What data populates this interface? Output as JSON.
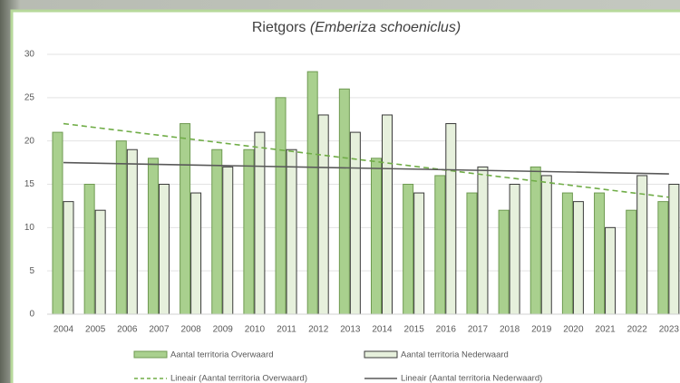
{
  "chart_data": {
    "type": "bar",
    "title": "Rietgors",
    "title_species": "(Emberiza schoeniclus)",
    "categories": [
      "2004",
      "2005",
      "2006",
      "2007",
      "2008",
      "2009",
      "2010",
      "2011",
      "2012",
      "2013",
      "2014",
      "2015",
      "2016",
      "2017",
      "2018",
      "2019",
      "2020",
      "2021",
      "2022",
      "2023"
    ],
    "series": [
      {
        "name": "Aantal territoria Overwaard",
        "color": "#a9d08e",
        "edge": "#6f9a52",
        "values": [
          21,
          15,
          20,
          18,
          22,
          19,
          19,
          25,
          28,
          26,
          18,
          15,
          16,
          14,
          12,
          17,
          14,
          14,
          12,
          13
        ]
      },
      {
        "name": "Aantal territoria Nederwaard",
        "color": "#e6f0dc",
        "edge": "#3a3a3a",
        "values": [
          13,
          12,
          19,
          15,
          14,
          17,
          21,
          19,
          23,
          21,
          23,
          14,
          22,
          17,
          15,
          16,
          13,
          10,
          16,
          15
        ]
      }
    ],
    "trendlines": [
      {
        "name": "Lineair (Aantal territoria Overwaard)",
        "color": "#70ad47",
        "dashed": true,
        "values": [
          22,
          13.5
        ]
      },
      {
        "name": "Lineair (Aantal territoria Nederwaard)",
        "color": "#595959",
        "dashed": false,
        "values": [
          17.5,
          16.2
        ]
      }
    ],
    "ylim": [
      0,
      30
    ],
    "yticks": [
      0,
      5,
      10,
      15,
      20,
      25,
      30
    ],
    "grid": true,
    "legend": "bottom"
  }
}
